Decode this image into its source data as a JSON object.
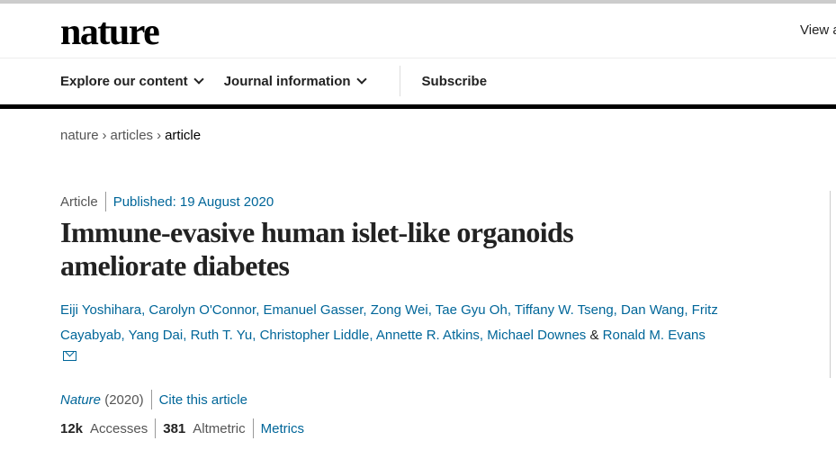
{
  "header": {
    "logo": "nature",
    "view_partial": "View a"
  },
  "nav": {
    "items": [
      {
        "label": "Explore our content"
      },
      {
        "label": "Journal information"
      }
    ],
    "subscribe": "Subscribe"
  },
  "breadcrumb": {
    "items": [
      "nature",
      "articles",
      "article"
    ],
    "separator": "›"
  },
  "article": {
    "type": "Article",
    "published": "Published: 19 August 2020",
    "title": "Immune-evasive human islet-like organoids ameliorate diabetes",
    "authors": [
      "Eiji Yoshihara",
      "Carolyn O'Connor",
      "Emanuel Gasser",
      "Zong Wei",
      "Tae Gyu Oh",
      "Tiffany W. Tseng",
      "Dan Wang",
      "Fritz Cayabyab",
      "Yang Dai",
      "Ruth T. Yu",
      "Christopher Liddle",
      "Annette R. Atkins",
      "Michael Downes",
      "Ronald M. Evans"
    ],
    "journal": "Nature",
    "year": "(2020)",
    "cite": "Cite this article",
    "accesses_value": "12k",
    "accesses_label": "Accesses",
    "altmetric_value": "381",
    "altmetric_label": "Altmetric",
    "metrics": "Metrics"
  },
  "colors": {
    "link": "#006699",
    "text": "#222222"
  }
}
